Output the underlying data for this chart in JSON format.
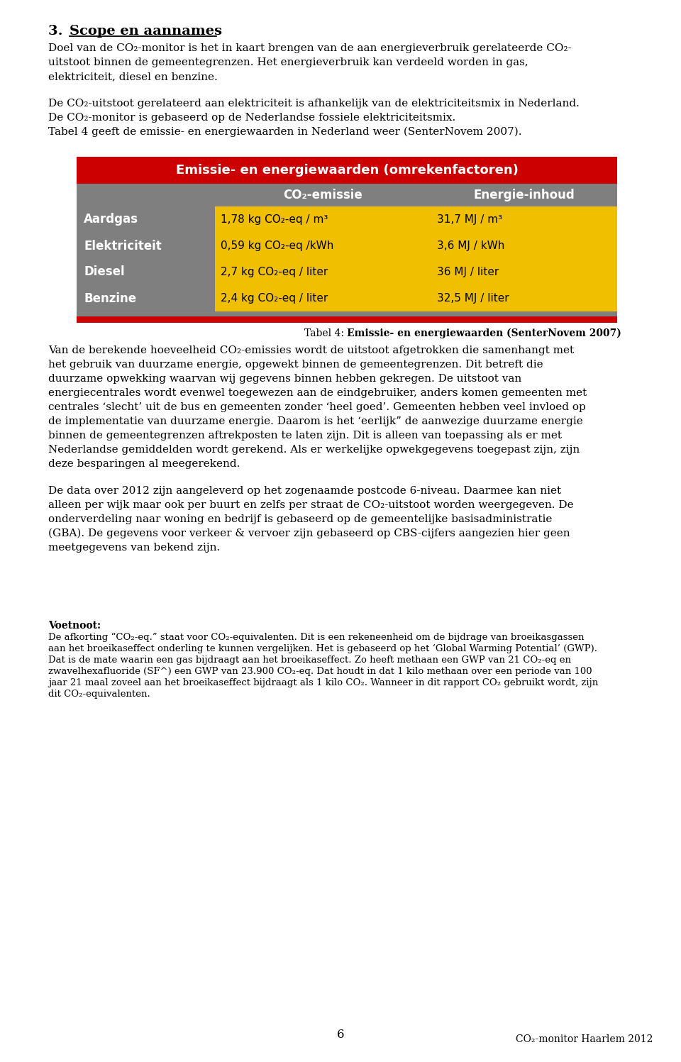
{
  "page_title_num": "3.",
  "page_title_text": "Scope en aannames",
  "lines_p1": [
    "Doel van de CO₂-monitor is het in kaart brengen van de aan energieverbruik gerelateerde CO₂-",
    "uitstoot binnen de gemeentegrenzen. Het energieverbruik kan verdeeld worden in gas,",
    "elektriciteit, diesel en benzine."
  ],
  "lines_p2": [
    "De CO₂-uitstoot gerelateerd aan elektriciteit is afhankelijk van de elektriciteitsmix in Nederland.",
    "De CO₂-monitor is gebaseerd op de Nederlandse fossiele elektriciteitsmix.",
    "Tabel 4 geeft de emissie- en energiewaarden in Nederland weer (SenterNovem 2007)."
  ],
  "table_title": "Emissie- en energiewaarden (omrekenfactoren)",
  "table_header_col2": "CO₂-emissie",
  "table_header_col3": "Energie-inhoud",
  "table_rows": [
    [
      "Aardgas",
      "1,78 kg CO₂-eq / m³",
      "31,7 MJ / m³"
    ],
    [
      "Elektriciteit",
      "0,59 kg CO₂-eq /kWh",
      "3,6 MJ / kWh"
    ],
    [
      "Diesel",
      "2,7 kg CO₂-eq / liter",
      "36 MJ / liter"
    ],
    [
      "Benzine",
      "2,4 kg CO₂-eq / liter",
      "32,5 MJ / liter"
    ]
  ],
  "table_caption_normal": "Tabel 4: ",
  "table_caption_bold": "Emissie- en energiewaarden (SenterNovem 2007)",
  "lines_p3": [
    "Van de berekende hoeveelheid CO₂-emissies wordt de uitstoot afgetrokken die samenhangt met",
    "het gebruik van duurzame energie, opgewekt binnen de gemeentegrenzen. Dit betreft die",
    "duurzame opwekking waarvan wij gegevens binnen hebben gekregen. De uitstoot van",
    "energiecentrales wordt evenwel toegewezen aan de eindgebruiker, anders komen gemeenten met",
    "centrales ‘slecht’ uit de bus en gemeenten zonder ‘heel goed’. Gemeenten hebben veel invloed op",
    "de implementatie van duurzame energie. Daarom is het ‘eerlijk” de aanwezige duurzame energie",
    "binnen de gemeentegrenzen aftrekposten te laten zijn. Dit is alleen van toepassing als er met",
    "Nederlandse gemiddelden wordt gerekend. Als er werkelijke opwekgegevens toegepast zijn, zijn",
    "deze besparingen al meegerekend."
  ],
  "lines_p4": [
    "De data over 2012 zijn aangeleverd op het zogenaamde postcode 6-niveau. Daarmee kan niet",
    "alleen per wijk maar ook per buurt en zelfs per straat de CO₂-uitstoot worden weergegeven. De",
    "onderverdeling naar woning en bedrijf is gebaseerd op de gemeentelijke basisadministratie",
    "(GBA). De gegevens voor verkeer & vervoer zijn gebaseerd op CBS-cijfers aangezien hier geen",
    "meetgegevens van bekend zijn."
  ],
  "footnote_title": "Voetnoot:",
  "fn_lines": [
    "De afkorting “CO₂-eq.” staat voor CO₂-equivalenten. Dit is een rekeneenheid om de bijdrage van broeikasgassen",
    "aan het broeikaseffect onderling te kunnen vergelijken. Het is gebaseerd op het ‘Global Warming Potential’ (GWP).",
    "Dat is de mate waarin een gas bijdraagt aan het broeikaseffect. Zo heeft methaan een GWP van 21 CO₂-eq en",
    "zwavelhexafluoride (SF^) een GWP van 23.900 CO₂-eq. Dat houdt in dat 1 kilo methaan over een periode van 100",
    "jaar 21 maal zoveel aan het broeikaseffect bijdraagt als 1 kilo CO₂. Wanneer in dit rapport CO₂ gebruikt wordt, zijn",
    "dit CO₂-equivalenten."
  ],
  "page_number": "6",
  "footer_right": "CO₂-monitor Haarlem 2012",
  "bg_color": "#ffffff",
  "table_header_bg": "#cc0000",
  "table_subheader_bg": "#7f7f7f",
  "table_label_bg": "#7f7f7f",
  "table_data_bg": "#f0c000",
  "table_footer_gray": "#7f7f7f",
  "table_footer_red": "#cc0000"
}
